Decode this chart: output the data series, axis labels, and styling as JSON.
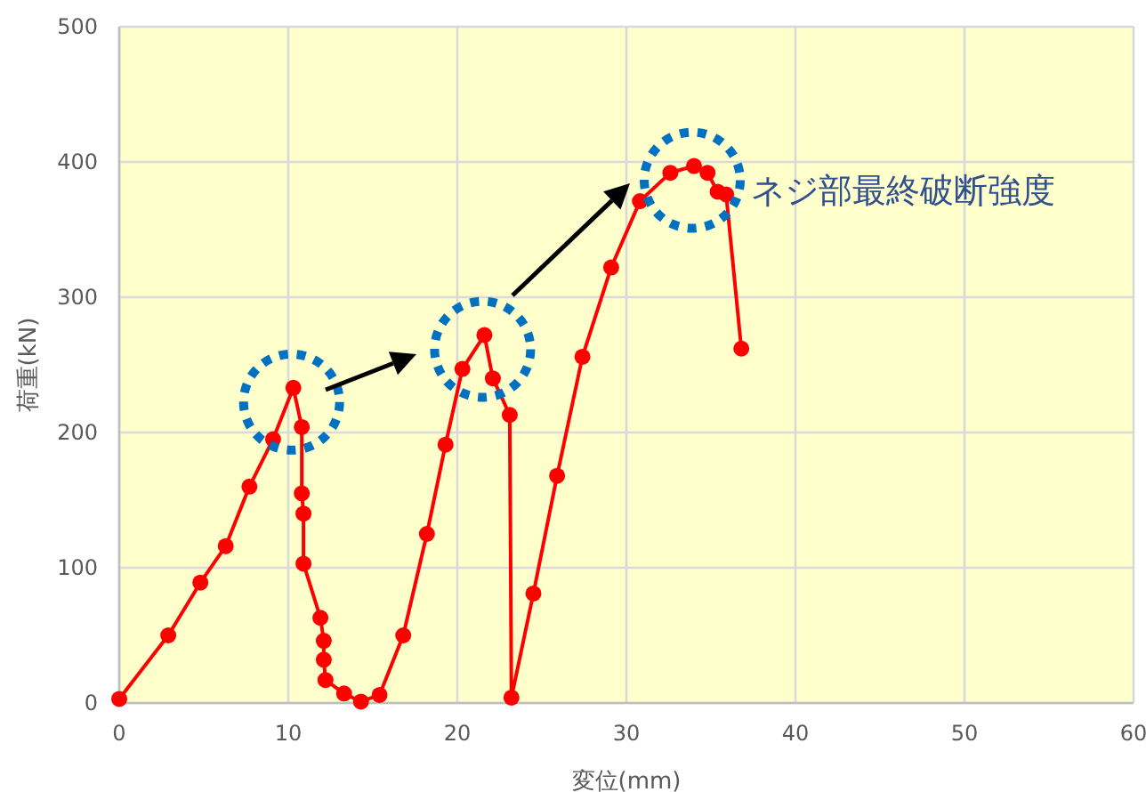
{
  "chart_data": {
    "type": "line",
    "xlabel": "変位(mm)",
    "ylabel": "荷重(kN)",
    "xlim": [
      0,
      60
    ],
    "ylim": [
      0,
      500
    ],
    "xticks": [
      0,
      10,
      20,
      30,
      40,
      50,
      60
    ],
    "yticks": [
      0,
      100,
      200,
      300,
      400,
      500
    ],
    "grid": true,
    "marker": "circle",
    "line_style": "solid",
    "x": [
      0,
      2.9,
      4.8,
      6.3,
      7.7,
      9.1,
      10.3,
      10.8,
      10.8,
      10.9,
      10.9,
      11.9,
      12.1,
      12.1,
      12.2,
      13.3,
      14.3,
      15.4,
      16.8,
      18.2,
      19.3,
      20.3,
      21.6,
      22.1,
      23.1,
      23.2,
      24.5,
      25.9,
      27.4,
      29.1,
      30.8,
      32.6,
      34,
      34.8,
      35.4,
      35.9,
      36.8
    ],
    "series": [
      {
        "color": "#ff0000",
        "values": [
          3,
          50,
          89,
          116,
          160,
          195,
          233,
          204,
          155,
          140,
          103,
          63,
          46,
          32,
          17,
          7,
          1,
          6,
          50,
          125,
          191,
          247,
          272,
          240,
          213,
          4,
          81,
          168,
          256,
          322,
          371,
          392,
          397,
          392,
          378,
          376,
          262
        ]
      }
    ],
    "annotations": [
      {
        "text": "ネジ部最終破断強度",
        "x": 34,
        "y": 397
      }
    ]
  }
}
